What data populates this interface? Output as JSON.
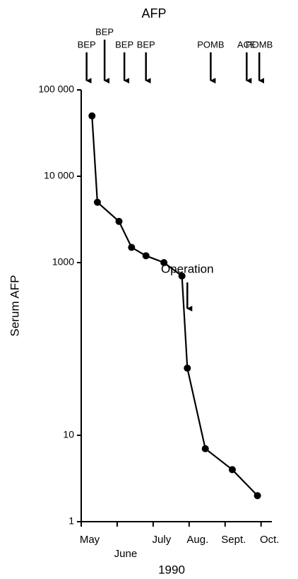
{
  "chart_data": {
    "type": "line",
    "title": "AFP",
    "ylabel": "Serum AFP",
    "xlabel": "1990",
    "log_y": true,
    "x": [
      5.3,
      5.45,
      6.05,
      6.4,
      6.8,
      7.3,
      7.8,
      7.95,
      8.45,
      9.2,
      9.9
    ],
    "series": [
      {
        "name": "Serum AFP",
        "color": "#000000",
        "values": [
          50000,
          5000,
          3000,
          1500,
          1200,
          1000,
          700,
          60,
          7,
          4,
          2
        ]
      }
    ],
    "xlim": [
      5,
      10.3
    ],
    "xticks": [
      {
        "value": 5,
        "label": "May"
      },
      {
        "value": 6,
        "label": "June"
      },
      {
        "value": 7,
        "label": "July"
      },
      {
        "value": 8,
        "label": "Aug."
      },
      {
        "value": 9,
        "label": "Sept."
      },
      {
        "value": 10,
        "label": "Oct."
      }
    ],
    "ylim": [
      1,
      100000
    ],
    "yticks": [
      1,
      10,
      1000,
      {
        "value": 10000,
        "label": "10 000"
      },
      {
        "value": 100000,
        "label": "100 000"
      }
    ],
    "annotations": [
      {
        "text": "BEP",
        "x": 5.15
      },
      {
        "text": "BEP",
        "x": 5.65
      },
      {
        "text": "BEP",
        "x": 6.2
      },
      {
        "text": "BEP",
        "x": 6.8
      },
      {
        "text": "POMB",
        "x": 8.6
      },
      {
        "text": "ACE",
        "x": 9.6
      },
      {
        "text": "POMB",
        "x": 9.95
      }
    ],
    "operation": {
      "text": "Operation",
      "x": 7.95
    }
  }
}
